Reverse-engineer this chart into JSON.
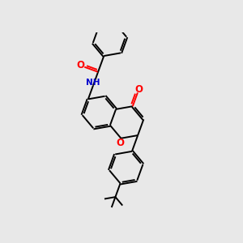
{
  "background_color": "#e8e8e8",
  "bond_color": "#000000",
  "oxygen_color": "#ff0000",
  "nitrogen_color": "#0000cd",
  "line_width": 1.4,
  "dbo": 0.055,
  "fig_width": 3.0,
  "fig_height": 3.0,
  "dpi": 100,
  "xlim": [
    -4.5,
    9.5
  ],
  "ylim": [
    -5.0,
    5.5
  ]
}
